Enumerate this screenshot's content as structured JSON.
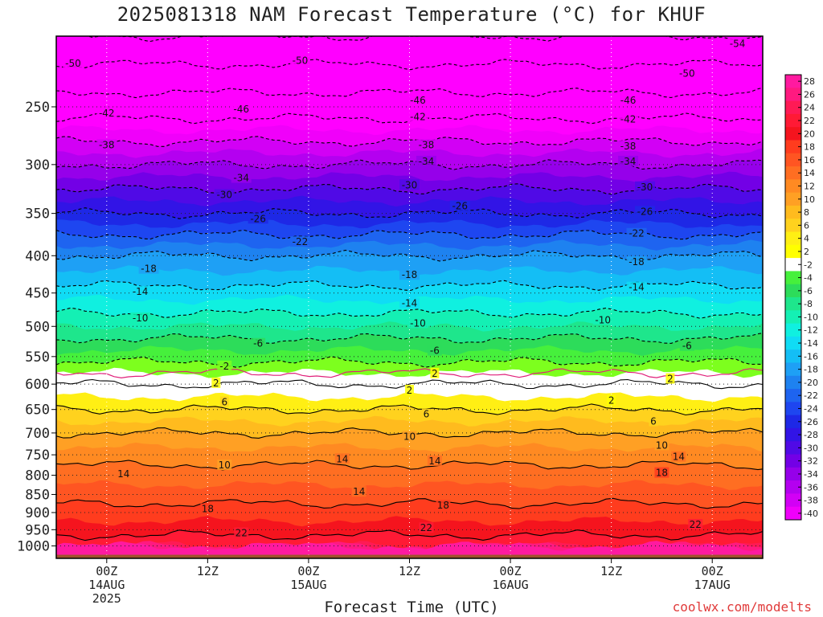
{
  "title": "2025081318 NAM Forecast Temperature (°C) for KHUF",
  "xlabel": "Forecast Time (UTC)",
  "credit": "coolwx.com/modelts",
  "chart_data": {
    "type": "heatmap",
    "title": "2025081318 NAM Forecast Temperature (°C) for KHUF",
    "xlabel": "Forecast Time (UTC)",
    "ylabel": "",
    "y_scale": "log",
    "y_inverted": true,
    "ylim": [
      200,
      1040
    ],
    "y_ticks": [
      250,
      300,
      350,
      400,
      450,
      500,
      550,
      600,
      650,
      700,
      750,
      800,
      850,
      900,
      950,
      1000
    ],
    "x_ticks": [
      {
        "time": "2025-08-14T00Z",
        "label": "00Z",
        "sub1": "14AUG",
        "sub2": "2025"
      },
      {
        "time": "2025-08-14T12Z",
        "label": "12Z",
        "sub1": "",
        "sub2": ""
      },
      {
        "time": "2025-08-15T00Z",
        "label": "00Z",
        "sub1": "15AUG",
        "sub2": ""
      },
      {
        "time": "2025-08-15T12Z",
        "label": "12Z",
        "sub1": "",
        "sub2": ""
      },
      {
        "time": "2025-08-16T00Z",
        "label": "00Z",
        "sub1": "16AUG",
        "sub2": ""
      },
      {
        "time": "2025-08-16T12Z",
        "label": "12Z",
        "sub1": "",
        "sub2": ""
      },
      {
        "time": "2025-08-17T00Z",
        "label": "00Z",
        "sub1": "17AUG",
        "sub2": ""
      }
    ],
    "xlim": [
      "2025-08-13T18Z",
      "2025-08-17T06Z"
    ],
    "ground_color": "#a0522d",
    "grid": true,
    "temperature_profile": [
      {
        "p": 200,
        "t": -54
      },
      {
        "p": 250,
        "t": -44
      },
      {
        "p": 300,
        "t": -34
      },
      {
        "p": 350,
        "t": -26
      },
      {
        "p": 400,
        "t": -18
      },
      {
        "p": 450,
        "t": -13
      },
      {
        "p": 500,
        "t": -8
      },
      {
        "p": 550,
        "t": -3
      },
      {
        "p": 600,
        "t": 2
      },
      {
        "p": 650,
        "t": 6
      },
      {
        "p": 700,
        "t": 10
      },
      {
        "p": 750,
        "t": 13
      },
      {
        "p": 800,
        "t": 15
      },
      {
        "p": 850,
        "t": 17
      },
      {
        "p": 900,
        "t": 19
      },
      {
        "p": 950,
        "t": 21
      },
      {
        "p": 1000,
        "t": 24
      }
    ],
    "contour_labels": [
      {
        "time": "2025-08-13T20Z",
        "p": 218,
        "t": -50
      },
      {
        "time": "2025-08-14T23Z",
        "p": 216,
        "t": -50
      },
      {
        "time": "2025-08-16T21Z",
        "p": 225,
        "t": -50
      },
      {
        "time": "2025-08-17T03Z",
        "p": 205,
        "t": -54
      },
      {
        "time": "2025-08-14T00Z",
        "p": 255,
        "t": -42
      },
      {
        "time": "2025-08-14T16Z",
        "p": 252,
        "t": -46
      },
      {
        "time": "2025-08-15T13Z",
        "p": 245,
        "t": -46
      },
      {
        "time": "2025-08-15T13Z",
        "p": 258,
        "t": -42
      },
      {
        "time": "2025-08-16T14Z",
        "p": 245,
        "t": -46
      },
      {
        "time": "2025-08-16T14Z",
        "p": 260,
        "t": -42
      },
      {
        "time": "2025-08-14T00Z",
        "p": 282,
        "t": -38
      },
      {
        "time": "2025-08-15T14Z",
        "p": 282,
        "t": -38
      },
      {
        "time": "2025-08-16T14Z",
        "p": 283,
        "t": -38
      },
      {
        "time": "2025-08-14T16Z",
        "p": 313,
        "t": -34
      },
      {
        "time": "2025-08-15T14Z",
        "p": 297,
        "t": -34
      },
      {
        "time": "2025-08-16T14Z",
        "p": 297,
        "t": -34
      },
      {
        "time": "2025-08-14T14Z",
        "p": 330,
        "t": -30
      },
      {
        "time": "2025-08-15T12Z",
        "p": 320,
        "t": -30
      },
      {
        "time": "2025-08-16T16Z",
        "p": 322,
        "t": -30
      },
      {
        "time": "2025-08-14T18Z",
        "p": 356,
        "t": -26
      },
      {
        "time": "2025-08-15T18Z",
        "p": 342,
        "t": -26
      },
      {
        "time": "2025-08-16T16Z",
        "p": 348,
        "t": -26
      },
      {
        "time": "2025-08-14T23Z",
        "p": 383,
        "t": -22
      },
      {
        "time": "2025-08-16T15Z",
        "p": 373,
        "t": -22
      },
      {
        "time": "2025-08-14T05Z",
        "p": 417,
        "t": -18
      },
      {
        "time": "2025-08-15T12Z",
        "p": 425,
        "t": -18
      },
      {
        "time": "2025-08-16T15Z",
        "p": 408,
        "t": -18
      },
      {
        "time": "2025-08-14T04Z",
        "p": 448,
        "t": -14
      },
      {
        "time": "2025-08-15T12Z",
        "p": 465,
        "t": -14
      },
      {
        "time": "2025-08-16T15Z",
        "p": 442,
        "t": -14
      },
      {
        "time": "2025-08-14T04Z",
        "p": 487,
        "t": -10
      },
      {
        "time": "2025-08-15T13Z",
        "p": 495,
        "t": -10
      },
      {
        "time": "2025-08-16T11Z",
        "p": 490,
        "t": -10
      },
      {
        "time": "2025-08-14T18Z",
        "p": 528,
        "t": -6
      },
      {
        "time": "2025-08-15T15Z",
        "p": 540,
        "t": -6
      },
      {
        "time": "2025-08-16T21Z",
        "p": 532,
        "t": -6
      },
      {
        "time": "2025-08-14T14Z",
        "p": 567,
        "t": -2
      },
      {
        "time": "2025-08-15T15Z",
        "p": 580,
        "t": 2
      },
      {
        "time": "2025-08-16T19Z",
        "p": 590,
        "t": 2
      },
      {
        "time": "2025-08-14T13Z",
        "p": 598,
        "t": 2
      },
      {
        "time": "2025-08-15T12Z",
        "p": 612,
        "t": 2
      },
      {
        "time": "2025-08-16T12Z",
        "p": 632,
        "t": 2
      },
      {
        "time": "2025-08-14T14Z",
        "p": 635,
        "t": 6
      },
      {
        "time": "2025-08-15T14Z",
        "p": 660,
        "t": 6
      },
      {
        "time": "2025-08-16T17Z",
        "p": 675,
        "t": 6
      },
      {
        "time": "2025-08-15T12Z",
        "p": 708,
        "t": 10
      },
      {
        "time": "2025-08-14T14Z",
        "p": 775,
        "t": 10
      },
      {
        "time": "2025-08-16T18Z",
        "p": 728,
        "t": 10
      },
      {
        "time": "2025-08-15T04Z",
        "p": 760,
        "t": 14
      },
      {
        "time": "2025-08-15T15Z",
        "p": 765,
        "t": 14
      },
      {
        "time": "2025-08-16T20Z",
        "p": 755,
        "t": 14
      },
      {
        "time": "2025-08-14T02Z",
        "p": 797,
        "t": 14
      },
      {
        "time": "2025-08-15T06Z",
        "p": 843,
        "t": 14
      },
      {
        "time": "2025-08-16T18Z",
        "p": 794,
        "t": 18
      },
      {
        "time": "2025-08-14T12Z",
        "p": 890,
        "t": 18
      },
      {
        "time": "2025-08-15T16Z",
        "p": 880,
        "t": 18
      },
      {
        "time": "2025-08-14T16Z",
        "p": 960,
        "t": 22
      },
      {
        "time": "2025-08-15T14Z",
        "p": 945,
        "t": 22
      },
      {
        "time": "2025-08-16T22Z",
        "p": 935,
        "t": 22
      }
    ],
    "colorbar": {
      "ticks": [
        28,
        26,
        24,
        22,
        20,
        18,
        16,
        14,
        12,
        10,
        8,
        6,
        4,
        2,
        -2,
        -4,
        -6,
        -8,
        -10,
        -12,
        -14,
        -16,
        -18,
        -20,
        -22,
        -24,
        -26,
        -28,
        -30,
        -32,
        -34,
        -36,
        -38,
        -40
      ],
      "colors": [
        {
          "t": 28,
          "color": "#ff1aa0"
        },
        {
          "t": 26,
          "color": "#ff1a80"
        },
        {
          "t": 24,
          "color": "#ff1a55"
        },
        {
          "t": 22,
          "color": "#ff1a35"
        },
        {
          "t": 20,
          "color": "#f5141e"
        },
        {
          "t": 18,
          "color": "#ff3c1e"
        },
        {
          "t": 16,
          "color": "#ff5522"
        },
        {
          "t": 14,
          "color": "#ff6e22"
        },
        {
          "t": 12,
          "color": "#ff8a22"
        },
        {
          "t": 10,
          "color": "#ffa024"
        },
        {
          "t": 8,
          "color": "#ffbb1e"
        },
        {
          "t": 6,
          "color": "#ffd21e"
        },
        {
          "t": 4,
          "color": "#ffef14"
        },
        {
          "t": 2,
          "color": "#ffff00"
        },
        {
          "t": 0,
          "color": "#ffffff"
        },
        {
          "t": -2,
          "color": "#7dff1e"
        },
        {
          "t": -4,
          "color": "#46f03c"
        },
        {
          "t": -6,
          "color": "#2ddc5a"
        },
        {
          "t": -8,
          "color": "#1ee68c"
        },
        {
          "t": -10,
          "color": "#14f0b4"
        },
        {
          "t": -12,
          "color": "#10f0e0"
        },
        {
          "t": -14,
          "color": "#10dcf5"
        },
        {
          "t": -16,
          "color": "#14bef5"
        },
        {
          "t": -18,
          "color": "#1ea0f5"
        },
        {
          "t": -20,
          "color": "#1e82f0"
        },
        {
          "t": -22,
          "color": "#1e64f0"
        },
        {
          "t": -24,
          "color": "#1e46f0"
        },
        {
          "t": -26,
          "color": "#1e28e6"
        },
        {
          "t": -28,
          "color": "#3214e6"
        },
        {
          "t": -30,
          "color": "#500ae6"
        },
        {
          "t": -32,
          "color": "#7300e6"
        },
        {
          "t": -34,
          "color": "#9600ea"
        },
        {
          "t": -36,
          "color": "#b400f0"
        },
        {
          "t": -38,
          "color": "#d200f5"
        },
        {
          "t": -40,
          "color": "#f000fa"
        },
        {
          "t": -42,
          "color": "#ff00ff"
        }
      ]
    }
  }
}
